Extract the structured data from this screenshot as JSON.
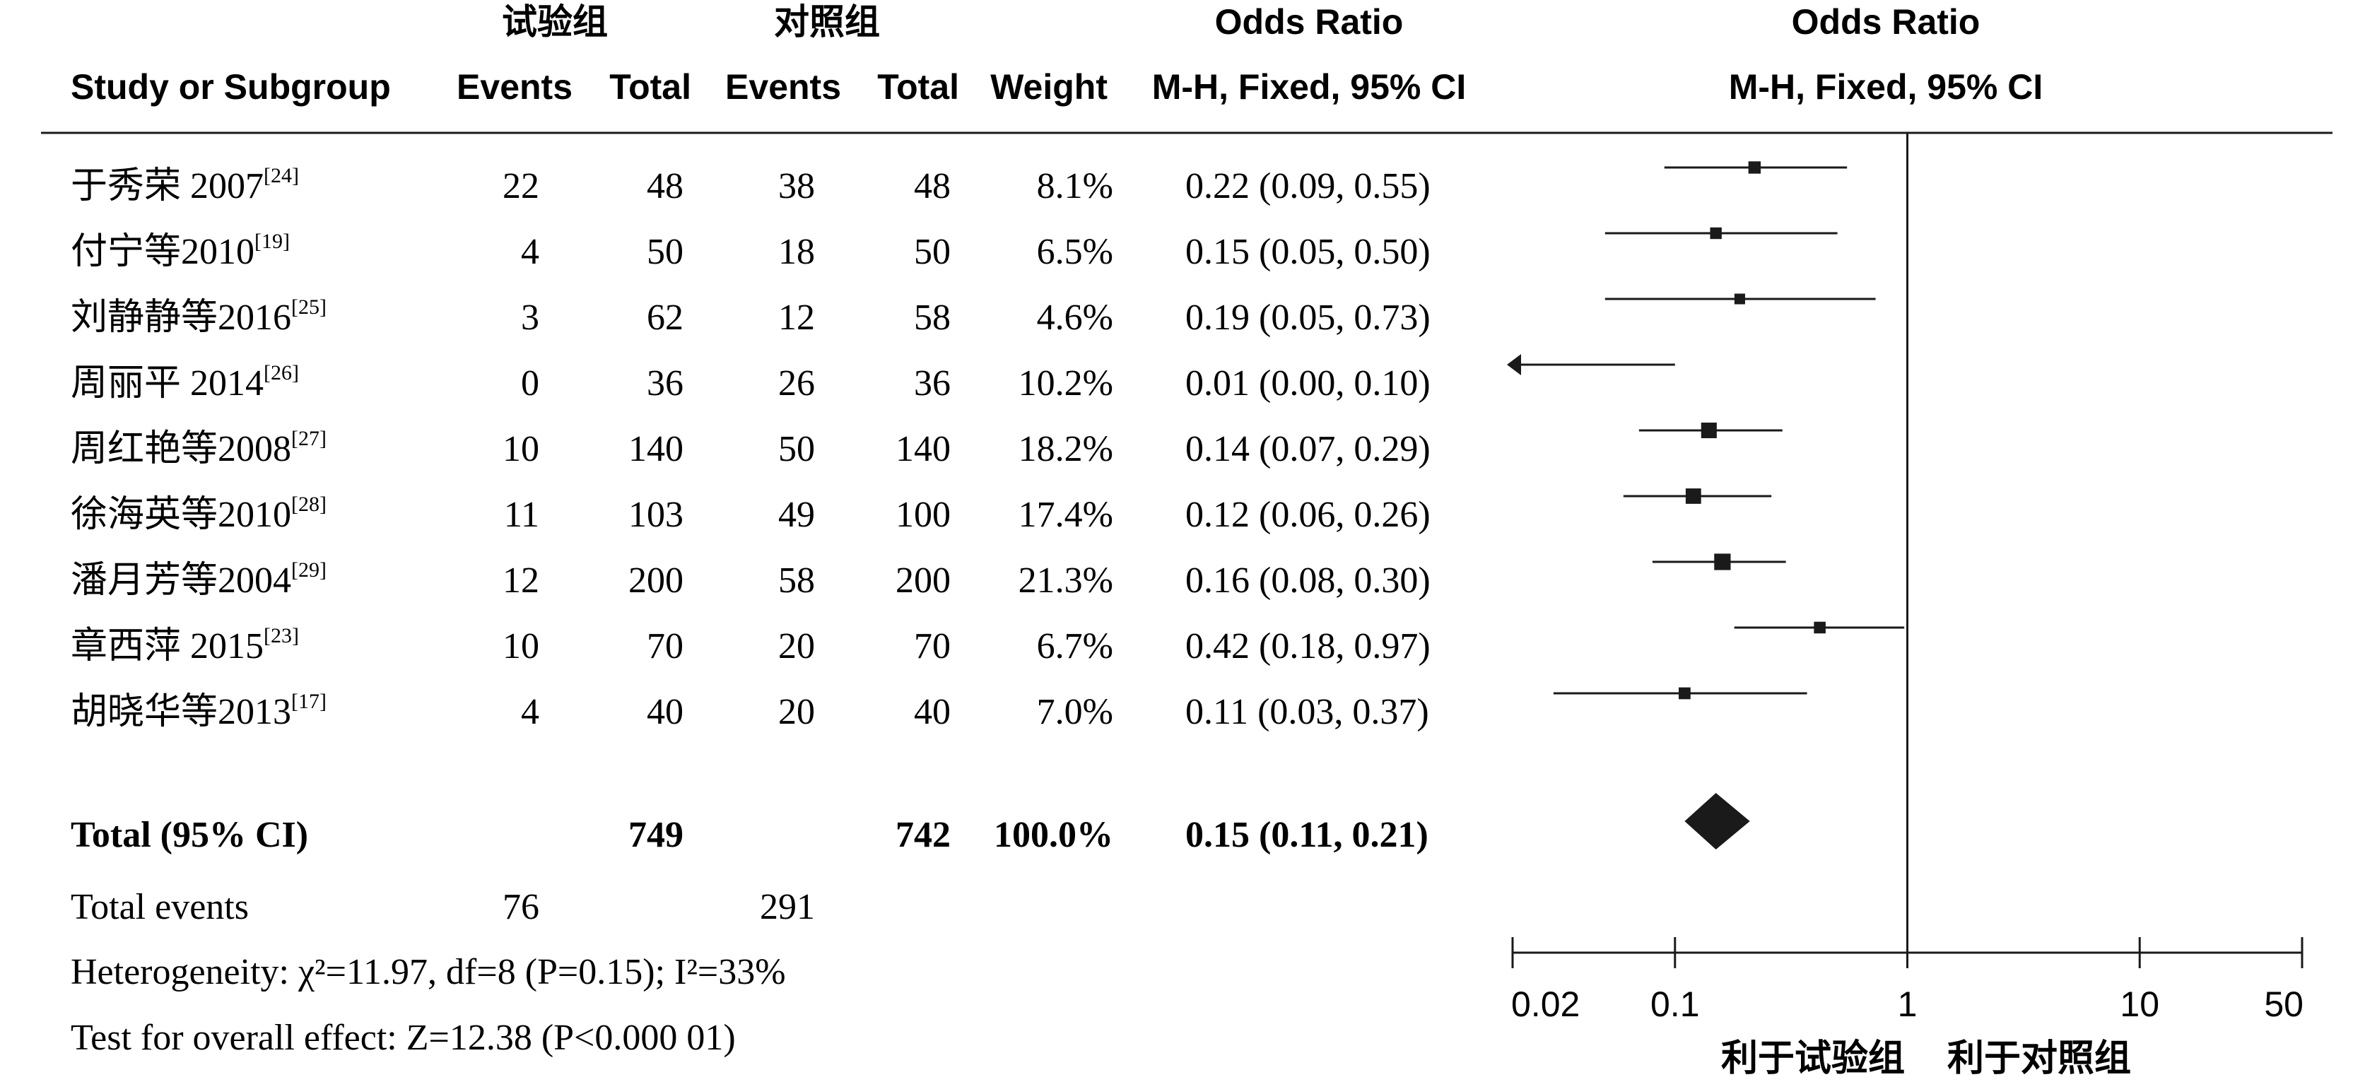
{
  "headers": {
    "group_exp": "试验组",
    "group_ctrl": "对照组",
    "study": "Study or Subgroup",
    "events": "Events",
    "total": "Total",
    "weight": "Weight",
    "or_title": "Odds Ratio",
    "or_method": "M-H, Fixed, 95% CI",
    "plot_title": "Odds Ratio",
    "plot_method": "M-H, Fixed, 95% CI"
  },
  "summary": {
    "label": "Total (95% CI)",
    "exp_total": "749",
    "ctrl_total": "742",
    "weight": "100.0%",
    "ci_text": "0.15 (0.11, 0.21)",
    "total_events_label": "Total events",
    "exp_events": "76",
    "ctrl_events": "291",
    "heterogeneity": "Heterogeneity: χ²=11.97, df=8 (P=0.15); I²=33%",
    "overall": "Test for overall effect: Z=12.38 (P<0.000 01)"
  },
  "axis": {
    "ticks": [
      "0.02",
      "0.1",
      "1",
      "10",
      "50"
    ],
    "favors_left": "利于试验组",
    "favors_right": "利于对照组"
  },
  "chart_data": {
    "type": "forest",
    "xscale": "log",
    "xlim": [
      0.02,
      50
    ],
    "reference_line": 1,
    "studies": [
      {
        "name": "于秀荣 2007",
        "ref": "[24]",
        "exp_events": "22",
        "exp_total": "48",
        "ctrl_events": "38",
        "ctrl_total": "48",
        "weight": "8.1%",
        "ci_text": "0.22 (0.09, 0.55)",
        "or": 0.22,
        "lo": 0.09,
        "hi": 0.55,
        "w": 8.1
      },
      {
        "name": "付宁等2010",
        "ref": "[19]",
        "exp_events": "4",
        "exp_total": "50",
        "ctrl_events": "18",
        "ctrl_total": "50",
        "weight": "6.5%",
        "ci_text": "0.15 (0.05, 0.50)",
        "or": 0.15,
        "lo": 0.05,
        "hi": 0.5,
        "w": 6.5
      },
      {
        "name": "刘静静等2016",
        "ref": "[25]",
        "exp_events": "3",
        "exp_total": "62",
        "ctrl_events": "12",
        "ctrl_total": "58",
        "weight": "4.6%",
        "ci_text": "0.19 (0.05, 0.73)",
        "or": 0.19,
        "lo": 0.05,
        "hi": 0.73,
        "w": 4.6
      },
      {
        "name": "周丽平 2014",
        "ref": "[26]",
        "exp_events": "0",
        "exp_total": "36",
        "ctrl_events": "26",
        "ctrl_total": "36",
        "weight": "10.2%",
        "ci_text": "0.01 (0.00, 0.10)",
        "or": 0.01,
        "lo": 0.0,
        "hi": 0.1,
        "w": 10.2
      },
      {
        "name": "周红艳等2008",
        "ref": "[27]",
        "exp_events": "10",
        "exp_total": "140",
        "ctrl_events": "50",
        "ctrl_total": "140",
        "weight": "18.2%",
        "ci_text": "0.14 (0.07, 0.29)",
        "or": 0.14,
        "lo": 0.07,
        "hi": 0.29,
        "w": 18.2
      },
      {
        "name": "徐海英等2010",
        "ref": "[28]",
        "exp_events": "11",
        "exp_total": "103",
        "ctrl_events": "49",
        "ctrl_total": "100",
        "weight": "17.4%",
        "ci_text": "0.12 (0.06, 0.26)",
        "or": 0.12,
        "lo": 0.06,
        "hi": 0.26,
        "w": 17.4
      },
      {
        "name": "潘月芳等2004",
        "ref": "[29]",
        "exp_events": "12",
        "exp_total": "200",
        "ctrl_events": "58",
        "ctrl_total": "200",
        "weight": "21.3%",
        "ci_text": "0.16 (0.08, 0.30)",
        "or": 0.16,
        "lo": 0.08,
        "hi": 0.3,
        "w": 21.3
      },
      {
        "name": "章西萍 2015",
        "ref": "[23]",
        "exp_events": "10",
        "exp_total": "70",
        "ctrl_events": "20",
        "ctrl_total": "70",
        "weight": "6.7%",
        "ci_text": "0.42 (0.18, 0.97)",
        "or": 0.42,
        "lo": 0.18,
        "hi": 0.97,
        "w": 6.7
      },
      {
        "name": "胡晓华等2013",
        "ref": "[17]",
        "exp_events": "4",
        "exp_total": "40",
        "ctrl_events": "20",
        "ctrl_total": "40",
        "weight": "7.0%",
        "ci_text": "0.11 (0.03, 0.37)",
        "or": 0.11,
        "lo": 0.03,
        "hi": 0.37,
        "w": 7.0
      }
    ],
    "pooled": {
      "or": 0.15,
      "lo": 0.11,
      "hi": 0.21
    },
    "colors": {
      "ink": "#1a1a1a",
      "background": "#ffffff"
    }
  }
}
